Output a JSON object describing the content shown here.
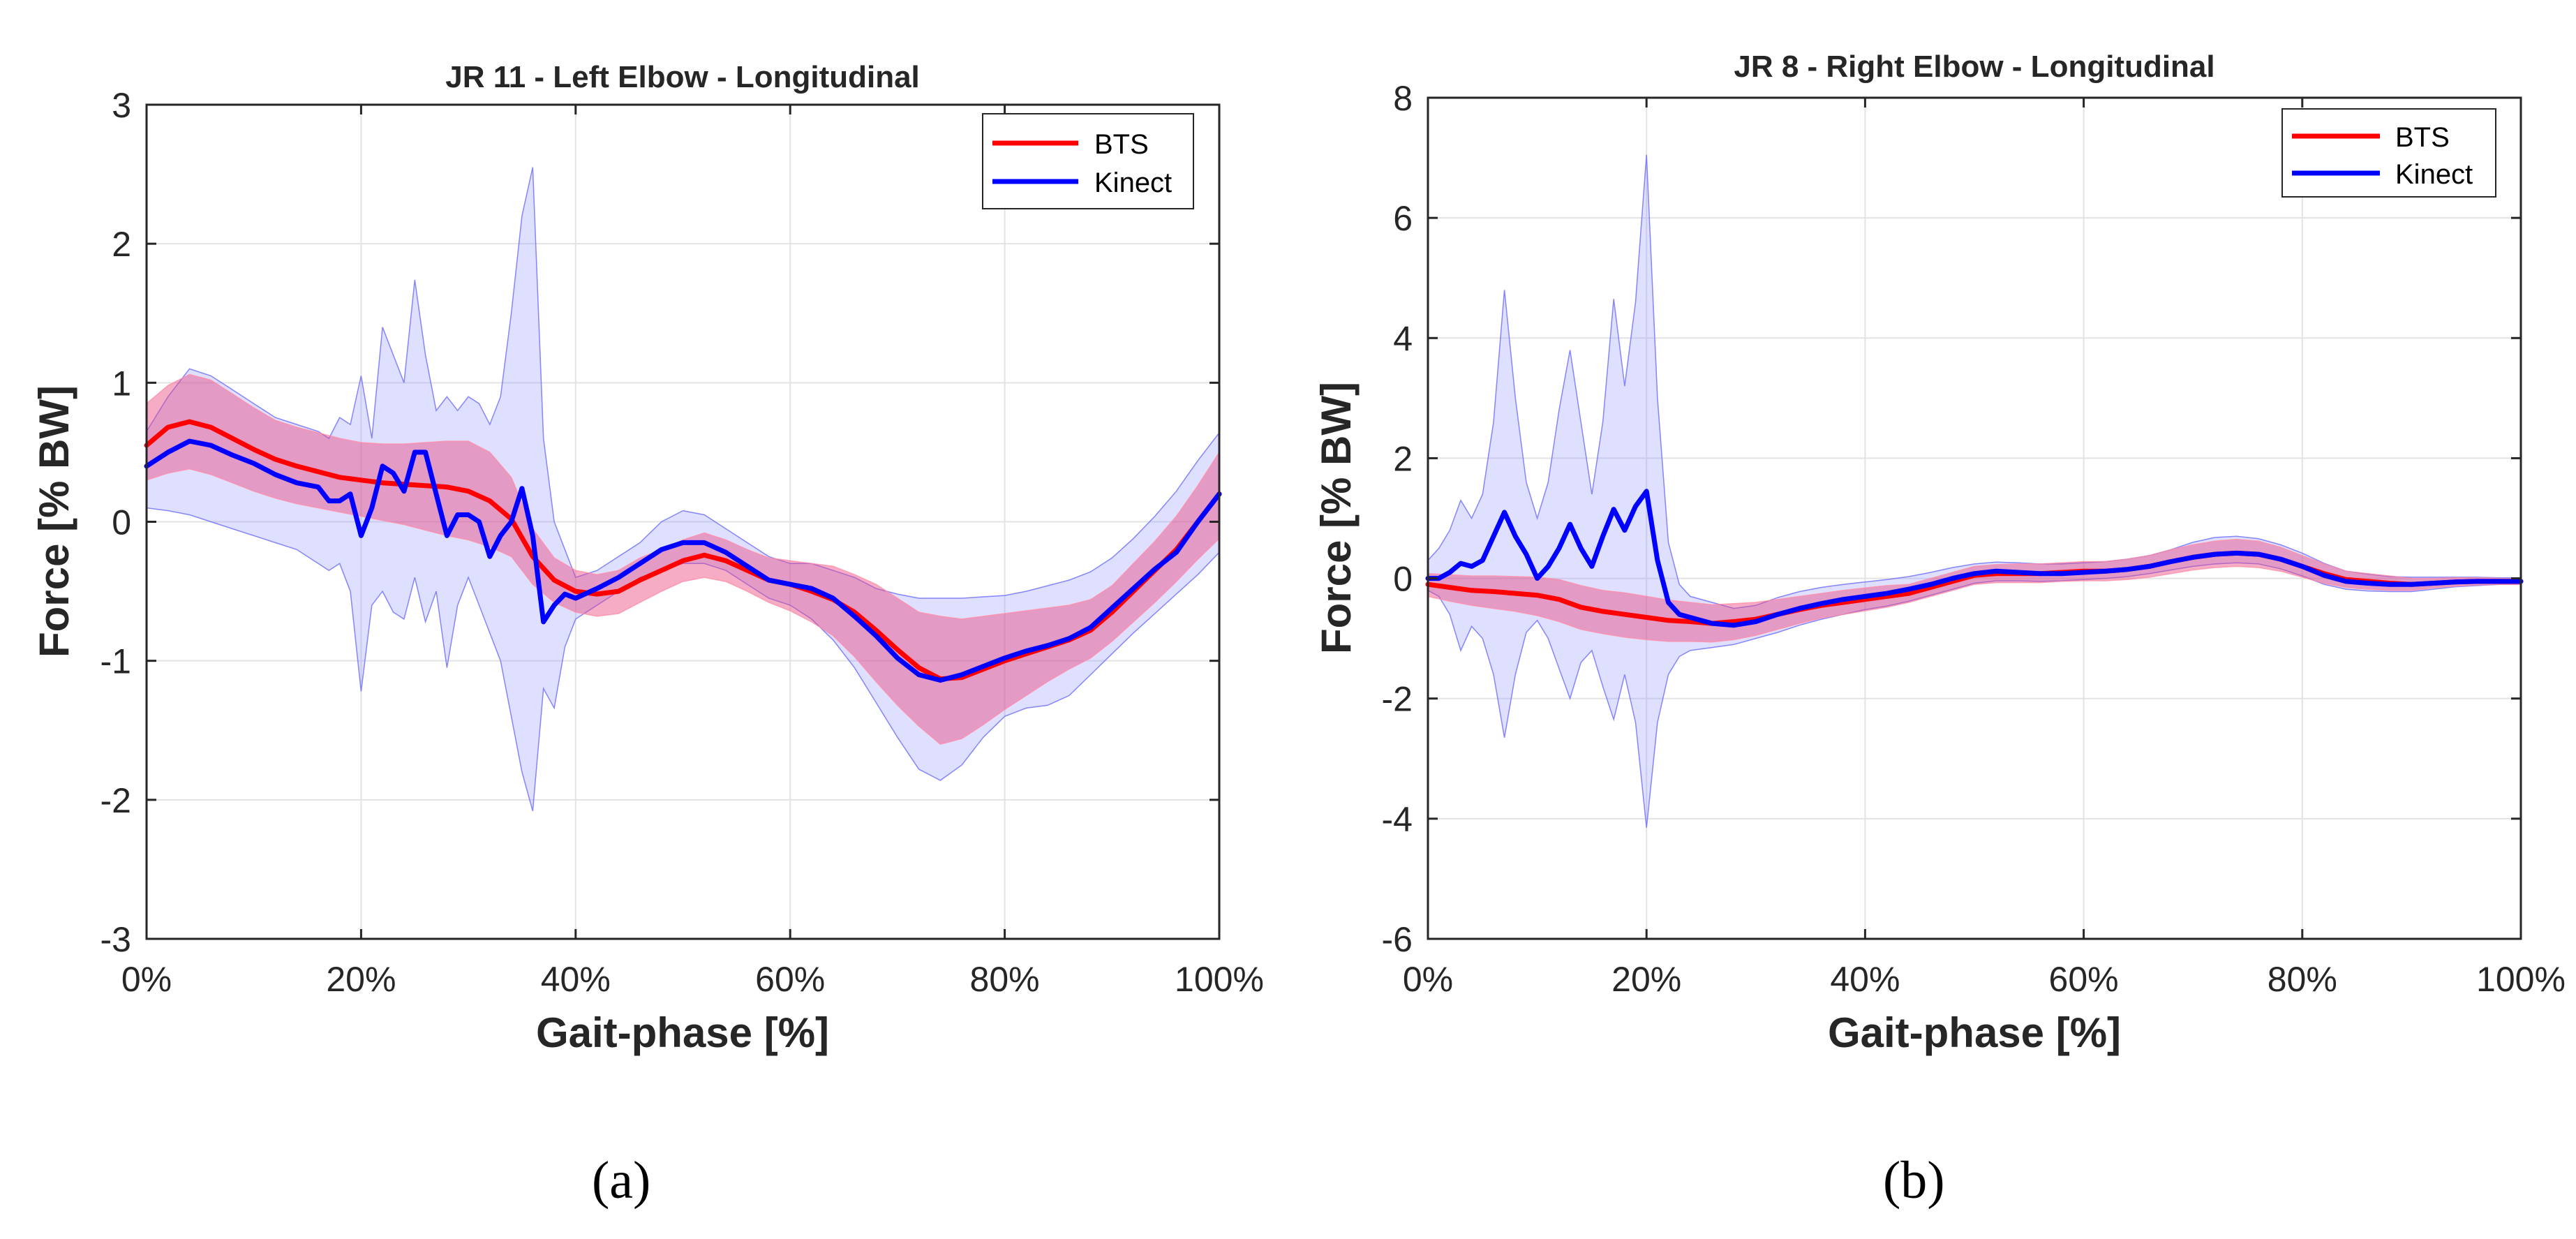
{
  "figure": {
    "caption_a": "(a)",
    "caption_b": "(b)"
  },
  "colors": {
    "bts": "#ff0000",
    "kinect": "#0000ff",
    "bts_band": "#e8467c",
    "kinect_band": "#8c8cff",
    "grid": "#e3e3e3",
    "axis": "#000000"
  },
  "chart_data": [
    {
      "type": "line",
      "title": "JR 11 - Left Elbow - Longitudinal",
      "xlabel": "Gait-phase [%]",
      "ylabel": "Force [% BW]",
      "xlim": [
        0,
        100
      ],
      "ylim": [
        -3,
        3
      ],
      "x_ticks": [
        0,
        20,
        40,
        60,
        80,
        100
      ],
      "x_tick_labels": [
        "0%",
        "20%",
        "40%",
        "60%",
        "80%",
        "100%"
      ],
      "y_ticks": [
        -3,
        -2,
        -1,
        0,
        1,
        2,
        3
      ],
      "y_tick_labels": [
        "-3",
        "-2",
        "-1",
        "0",
        "1",
        "2",
        "3"
      ],
      "grid": true,
      "legend_position": "top-right",
      "series": [
        {
          "name": "BTS",
          "x": [
            0,
            2,
            4,
            6,
            8,
            10,
            12,
            14,
            16,
            18,
            20,
            22,
            24,
            26,
            28,
            30,
            32,
            34,
            36,
            38,
            40,
            42,
            44,
            46,
            48,
            50,
            52,
            54,
            56,
            58,
            60,
            62,
            64,
            66,
            68,
            70,
            72,
            74,
            76,
            78,
            80,
            82,
            84,
            86,
            88,
            90,
            92,
            94,
            96,
            98,
            100
          ],
          "y": [
            0.55,
            0.68,
            0.72,
            0.68,
            0.6,
            0.52,
            0.45,
            0.4,
            0.36,
            0.32,
            0.3,
            0.28,
            0.27,
            0.26,
            0.25,
            0.22,
            0.15,
            0.02,
            -0.25,
            -0.42,
            -0.5,
            -0.52,
            -0.5,
            -0.42,
            -0.35,
            -0.28,
            -0.24,
            -0.28,
            -0.35,
            -0.42,
            -0.45,
            -0.5,
            -0.56,
            -0.65,
            -0.78,
            -0.92,
            -1.05,
            -1.13,
            -1.12,
            -1.06,
            -1.0,
            -0.95,
            -0.9,
            -0.85,
            -0.78,
            -0.65,
            -0.5,
            -0.35,
            -0.2,
            0.0,
            0.2
          ],
          "band_low": [
            0.3,
            0.35,
            0.38,
            0.34,
            0.28,
            0.22,
            0.17,
            0.13,
            0.1,
            0.07,
            0.04,
            0.01,
            -0.02,
            -0.06,
            -0.1,
            -0.13,
            -0.18,
            -0.25,
            -0.45,
            -0.58,
            -0.65,
            -0.68,
            -0.66,
            -0.58,
            -0.5,
            -0.43,
            -0.4,
            -0.43,
            -0.5,
            -0.58,
            -0.64,
            -0.72,
            -0.82,
            -0.97,
            -1.15,
            -1.32,
            -1.47,
            -1.6,
            -1.56,
            -1.46,
            -1.35,
            -1.25,
            -1.15,
            -1.06,
            -0.98,
            -0.86,
            -0.72,
            -0.58,
            -0.43,
            -0.27,
            -0.12
          ],
          "band_high": [
            0.85,
            0.98,
            1.06,
            1.02,
            0.92,
            0.82,
            0.73,
            0.68,
            0.64,
            0.6,
            0.57,
            0.56,
            0.56,
            0.57,
            0.58,
            0.58,
            0.5,
            0.32,
            -0.05,
            -0.26,
            -0.35,
            -0.38,
            -0.35,
            -0.26,
            -0.2,
            -0.13,
            -0.08,
            -0.13,
            -0.2,
            -0.26,
            -0.28,
            -0.3,
            -0.32,
            -0.38,
            -0.45,
            -0.55,
            -0.65,
            -0.68,
            -0.7,
            -0.68,
            -0.66,
            -0.64,
            -0.62,
            -0.6,
            -0.56,
            -0.46,
            -0.3,
            -0.14,
            0.04,
            0.26,
            0.5
          ]
        },
        {
          "name": "Kinect",
          "x": [
            0,
            2,
            4,
            6,
            8,
            10,
            12,
            14,
            16,
            17,
            18,
            19,
            20,
            21,
            22,
            23,
            24,
            25,
            26,
            27,
            28,
            29,
            30,
            31,
            32,
            33,
            34,
            35,
            36,
            37,
            38,
            39,
            40,
            42,
            44,
            46,
            48,
            50,
            52,
            54,
            56,
            58,
            60,
            62,
            64,
            66,
            68,
            70,
            72,
            74,
            76,
            78,
            80,
            82,
            84,
            86,
            88,
            90,
            92,
            94,
            96,
            98,
            100
          ],
          "y": [
            0.4,
            0.5,
            0.58,
            0.55,
            0.48,
            0.42,
            0.34,
            0.28,
            0.25,
            0.15,
            0.15,
            0.2,
            -0.1,
            0.1,
            0.4,
            0.35,
            0.22,
            0.5,
            0.5,
            0.2,
            -0.1,
            0.05,
            0.05,
            0.0,
            -0.25,
            -0.1,
            0.0,
            0.24,
            -0.1,
            -0.72,
            -0.6,
            -0.52,
            -0.55,
            -0.48,
            -0.4,
            -0.3,
            -0.2,
            -0.15,
            -0.15,
            -0.22,
            -0.32,
            -0.42,
            -0.45,
            -0.48,
            -0.55,
            -0.68,
            -0.82,
            -0.98,
            -1.1,
            -1.14,
            -1.1,
            -1.04,
            -0.98,
            -0.93,
            -0.89,
            -0.84,
            -0.76,
            -0.62,
            -0.48,
            -0.34,
            -0.22,
            0.0,
            0.2
          ],
          "band_low": [
            0.1,
            0.08,
            0.05,
            0.0,
            -0.05,
            -0.1,
            -0.15,
            -0.2,
            -0.3,
            -0.35,
            -0.3,
            -0.5,
            -1.22,
            -0.6,
            -0.5,
            -0.65,
            -0.7,
            -0.4,
            -0.72,
            -0.5,
            -1.05,
            -0.6,
            -0.4,
            -0.6,
            -0.8,
            -1.0,
            -1.4,
            -1.8,
            -2.08,
            -1.2,
            -1.34,
            -0.9,
            -0.7,
            -0.6,
            -0.5,
            -0.4,
            -0.35,
            -0.3,
            -0.3,
            -0.35,
            -0.45,
            -0.55,
            -0.6,
            -0.7,
            -0.85,
            -1.05,
            -1.3,
            -1.55,
            -1.78,
            -1.86,
            -1.75,
            -1.55,
            -1.4,
            -1.34,
            -1.32,
            -1.25,
            -1.1,
            -0.95,
            -0.8,
            -0.66,
            -0.52,
            -0.38,
            -0.22
          ],
          "band_high": [
            0.65,
            0.9,
            1.1,
            1.05,
            0.95,
            0.85,
            0.75,
            0.7,
            0.65,
            0.6,
            0.75,
            0.7,
            1.05,
            0.6,
            1.4,
            1.2,
            1.0,
            1.74,
            1.2,
            0.8,
            0.9,
            0.8,
            0.9,
            0.85,
            0.7,
            0.9,
            1.5,
            2.2,
            2.55,
            0.6,
            0.0,
            -0.2,
            -0.4,
            -0.35,
            -0.25,
            -0.15,
            0.0,
            0.08,
            0.05,
            -0.05,
            -0.15,
            -0.25,
            -0.3,
            -0.3,
            -0.35,
            -0.4,
            -0.48,
            -0.52,
            -0.55,
            -0.55,
            -0.55,
            -0.54,
            -0.53,
            -0.5,
            -0.46,
            -0.42,
            -0.36,
            -0.26,
            -0.12,
            0.04,
            0.22,
            0.44,
            0.64
          ]
        }
      ]
    },
    {
      "type": "line",
      "title": "JR 8 - Right Elbow - Longitudinal",
      "xlabel": "Gait-phase [%]",
      "ylabel": "Force [% BW]",
      "xlim": [
        0,
        100
      ],
      "ylim": [
        -6,
        8
      ],
      "x_ticks": [
        0,
        20,
        40,
        60,
        80,
        100
      ],
      "x_tick_labels": [
        "0%",
        "20%",
        "40%",
        "60%",
        "80%",
        "100%"
      ],
      "y_ticks": [
        -6,
        -4,
        -2,
        0,
        2,
        4,
        6,
        8
      ],
      "y_tick_labels": [
        "-6",
        "-4",
        "-2",
        "0",
        "2",
        "4",
        "6",
        "8"
      ],
      "grid": true,
      "legend_position": "top-right",
      "series": [
        {
          "name": "BTS",
          "x": [
            0,
            2,
            4,
            6,
            8,
            10,
            12,
            14,
            16,
            18,
            20,
            22,
            24,
            26,
            28,
            30,
            32,
            34,
            36,
            38,
            40,
            42,
            44,
            46,
            48,
            50,
            52,
            54,
            56,
            58,
            60,
            62,
            64,
            66,
            68,
            70,
            72,
            74,
            76,
            78,
            80,
            82,
            84,
            86,
            88,
            90,
            92,
            94,
            96,
            98,
            100
          ],
          "y": [
            -0.1,
            -0.15,
            -0.2,
            -0.22,
            -0.25,
            -0.28,
            -0.35,
            -0.48,
            -0.55,
            -0.6,
            -0.65,
            -0.7,
            -0.72,
            -0.75,
            -0.72,
            -0.68,
            -0.6,
            -0.52,
            -0.45,
            -0.4,
            -0.35,
            -0.3,
            -0.25,
            -0.15,
            -0.05,
            0.05,
            0.08,
            0.08,
            0.08,
            0.1,
            0.12,
            0.12,
            0.15,
            0.2,
            0.28,
            0.35,
            0.4,
            0.42,
            0.4,
            0.32,
            0.2,
            0.08,
            -0.02,
            -0.05,
            -0.08,
            -0.1,
            -0.08,
            -0.06,
            -0.05,
            -0.05,
            -0.05
          ],
          "band_low": [
            -0.3,
            -0.38,
            -0.45,
            -0.5,
            -0.55,
            -0.62,
            -0.72,
            -0.85,
            -0.92,
            -0.98,
            -1.02,
            -1.05,
            -1.05,
            -1.06,
            -1.02,
            -0.95,
            -0.85,
            -0.75,
            -0.66,
            -0.6,
            -0.54,
            -0.48,
            -0.4,
            -0.3,
            -0.2,
            -0.1,
            -0.07,
            -0.07,
            -0.07,
            -0.05,
            -0.04,
            -0.04,
            -0.02,
            0.02,
            0.08,
            0.14,
            0.18,
            0.2,
            0.18,
            0.12,
            0.02,
            -0.08,
            -0.15,
            -0.18,
            -0.2,
            -0.2,
            -0.16,
            -0.13,
            -0.11,
            -0.1,
            -0.1
          ],
          "band_high": [
            0.08,
            0.06,
            0.04,
            0.04,
            0.03,
            0.02,
            -0.02,
            -0.12,
            -0.2,
            -0.24,
            -0.3,
            -0.36,
            -0.4,
            -0.44,
            -0.42,
            -0.4,
            -0.35,
            -0.3,
            -0.25,
            -0.2,
            -0.16,
            -0.12,
            -0.1,
            0.0,
            0.1,
            0.2,
            0.23,
            0.24,
            0.24,
            0.26,
            0.28,
            0.28,
            0.32,
            0.38,
            0.48,
            0.56,
            0.62,
            0.65,
            0.62,
            0.52,
            0.38,
            0.24,
            0.12,
            0.08,
            0.04,
            0.0,
            0.0,
            0.01,
            0.01,
            0.0,
            0.0
          ]
        },
        {
          "name": "Kinect",
          "x": [
            0,
            1,
            2,
            3,
            4,
            5,
            6,
            7,
            8,
            9,
            10,
            11,
            12,
            13,
            14,
            15,
            16,
            17,
            18,
            19,
            20,
            21,
            22,
            23,
            24,
            26,
            28,
            30,
            32,
            34,
            36,
            38,
            40,
            42,
            44,
            46,
            48,
            50,
            52,
            54,
            56,
            58,
            60,
            62,
            64,
            66,
            68,
            70,
            72,
            74,
            76,
            78,
            80,
            82,
            84,
            86,
            88,
            90,
            92,
            94,
            96,
            98,
            100
          ],
          "y": [
            0.0,
            0.0,
            0.1,
            0.25,
            0.2,
            0.3,
            0.7,
            1.1,
            0.7,
            0.4,
            0.0,
            0.2,
            0.5,
            0.9,
            0.5,
            0.2,
            0.7,
            1.15,
            0.8,
            1.2,
            1.45,
            0.3,
            -0.4,
            -0.6,
            -0.65,
            -0.75,
            -0.78,
            -0.72,
            -0.6,
            -0.5,
            -0.42,
            -0.35,
            -0.3,
            -0.25,
            -0.18,
            -0.1,
            0.0,
            0.08,
            0.12,
            0.1,
            0.08,
            0.08,
            0.1,
            0.12,
            0.15,
            0.2,
            0.28,
            0.35,
            0.4,
            0.42,
            0.4,
            0.32,
            0.2,
            0.05,
            -0.05,
            -0.08,
            -0.1,
            -0.1,
            -0.08,
            -0.06,
            -0.05,
            -0.05,
            -0.05
          ],
          "band_low": [
            -0.2,
            -0.3,
            -0.6,
            -1.2,
            -0.8,
            -1.0,
            -1.6,
            -2.65,
            -1.6,
            -0.9,
            -0.7,
            -1.0,
            -1.5,
            -2.0,
            -1.4,
            -1.2,
            -1.8,
            -2.35,
            -1.6,
            -2.4,
            -4.15,
            -2.4,
            -1.6,
            -1.3,
            -1.2,
            -1.15,
            -1.1,
            -1.0,
            -0.9,
            -0.78,
            -0.68,
            -0.6,
            -0.52,
            -0.46,
            -0.38,
            -0.28,
            -0.18,
            -0.08,
            -0.04,
            -0.04,
            -0.05,
            -0.04,
            -0.02,
            0.0,
            0.03,
            0.08,
            0.14,
            0.2,
            0.24,
            0.26,
            0.24,
            0.16,
            0.04,
            -0.1,
            -0.18,
            -0.21,
            -0.22,
            -0.22,
            -0.18,
            -0.14,
            -0.12,
            -0.1,
            -0.1
          ],
          "band_high": [
            0.3,
            0.5,
            0.8,
            1.3,
            1.0,
            1.4,
            2.6,
            4.8,
            3.0,
            1.6,
            1.0,
            1.6,
            2.8,
            3.8,
            2.6,
            1.4,
            2.6,
            4.65,
            3.2,
            4.6,
            7.05,
            3.0,
            0.6,
            -0.1,
            -0.3,
            -0.4,
            -0.5,
            -0.45,
            -0.32,
            -0.22,
            -0.15,
            -0.1,
            -0.06,
            -0.02,
            0.03,
            0.1,
            0.18,
            0.24,
            0.27,
            0.26,
            0.24,
            0.24,
            0.26,
            0.28,
            0.32,
            0.38,
            0.48,
            0.6,
            0.68,
            0.7,
            0.66,
            0.56,
            0.42,
            0.25,
            0.12,
            0.07,
            0.03,
            0.02,
            0.02,
            0.02,
            0.02,
            0.01,
            0.01
          ]
        }
      ]
    }
  ]
}
